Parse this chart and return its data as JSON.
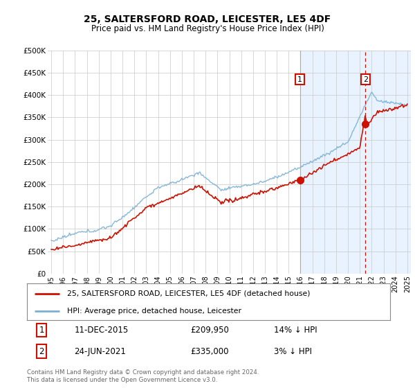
{
  "title": "25, SALTERSFORD ROAD, LEICESTER, LE5 4DF",
  "subtitle": "Price paid vs. HM Land Registry's House Price Index (HPI)",
  "background_color": "#ffffff",
  "hpi_color": "#7ab0d4",
  "price_color": "#cc1100",
  "shade_color": "#ddeeff",
  "ylim": [
    0,
    500000
  ],
  "yticks": [
    0,
    50000,
    100000,
    150000,
    200000,
    250000,
    300000,
    350000,
    400000,
    450000,
    500000
  ],
  "ytick_labels": [
    "£0",
    "£50K",
    "£100K",
    "£150K",
    "£200K",
    "£250K",
    "£300K",
    "£350K",
    "£400K",
    "£450K",
    "£500K"
  ],
  "xlim_start": 1994.7,
  "xlim_end": 2025.3,
  "xtick_years": [
    1995,
    1996,
    1997,
    1998,
    1999,
    2000,
    2001,
    2002,
    2003,
    2004,
    2005,
    2006,
    2007,
    2008,
    2009,
    2010,
    2011,
    2012,
    2013,
    2014,
    2015,
    2016,
    2017,
    2018,
    2019,
    2020,
    2021,
    2022,
    2023,
    2024,
    2025
  ],
  "sale1_x": 2015.95,
  "sale1_y": 209950,
  "sale2_x": 2021.48,
  "sale2_y": 335000,
  "shade_start": 2015.95,
  "legend_line1": "25, SALTERSFORD ROAD, LEICESTER, LE5 4DF (detached house)",
  "legend_line2": "HPI: Average price, detached house, Leicester",
  "table_row1": [
    "1",
    "11-DEC-2015",
    "£209,950",
    "14% ↓ HPI"
  ],
  "table_row2": [
    "2",
    "24-JUN-2021",
    "£335,000",
    "3% ↓ HPI"
  ],
  "footer": "Contains HM Land Registry data © Crown copyright and database right 2024.\nThis data is licensed under the Open Government Licence v3.0."
}
